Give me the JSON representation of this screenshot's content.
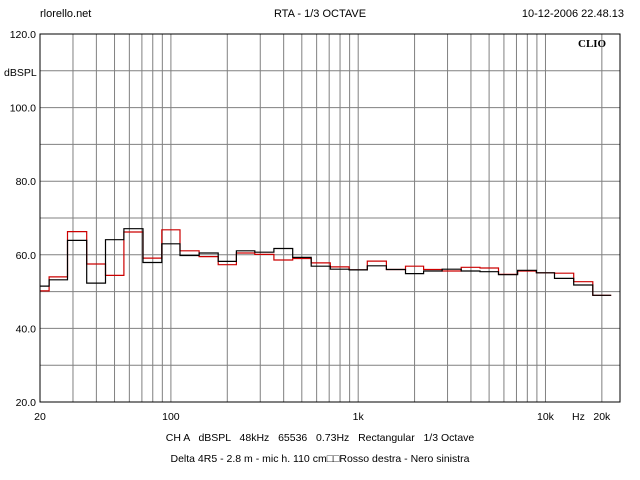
{
  "header": {
    "site": "rlorello.net",
    "title": "RTA - 1/3 OCTAVE",
    "datetime": "10-12-2006 22.48.13"
  },
  "footer": {
    "settings": [
      "CH A",
      "dBSPL",
      "48kHz",
      "65536",
      "0.73Hz",
      "Rectangular",
      "1/3 Octave"
    ],
    "note": "Delta 4R5 - 2.8 m - mic h. 110 cm□□Rosso destra - Nero sinistra"
  },
  "chart_data": {
    "type": "line",
    "brand": "CLIO",
    "ylabel": "dBSPL",
    "xlabel_unit": "Hz",
    "x_scale": "log",
    "xlim": [
      20,
      25000
    ],
    "ylim": [
      20,
      120
    ],
    "grid": true,
    "y_tick_labels": [
      "120.0",
      "100.0",
      "80.0",
      "60.0",
      "40.0",
      "20.0"
    ],
    "y_ticks": [
      120,
      100,
      80,
      60,
      40,
      20
    ],
    "x_tick_labels": [
      "20",
      "100",
      "1k",
      "10k",
      "20k"
    ],
    "x_ticks": [
      20,
      100,
      1000,
      10000,
      20000
    ],
    "colors": {
      "red": "#cc0000",
      "black": "#000000",
      "grid": "#808080"
    },
    "bands": [
      20,
      25,
      31.5,
      40,
      50,
      63,
      80,
      100,
      125,
      160,
      200,
      250,
      315,
      400,
      500,
      630,
      800,
      1000,
      1250,
      1600,
      2000,
      2500,
      3150,
      4000,
      5000,
      6300,
      8000,
      10000,
      12500,
      16000,
      20000
    ],
    "series": [
      {
        "color": "#cc0000",
        "values": [
          50.2,
          54.0,
          66.3,
          57.5,
          54.4,
          66.2,
          59.1,
          66.8,
          61.1,
          59.5,
          57.3,
          60.5,
          60.1,
          58.6,
          59.0,
          57.8,
          56.7,
          55.9,
          58.3,
          56.0,
          56.9,
          56.0,
          55.6,
          56.6,
          56.4,
          54.7,
          55.6,
          55.1,
          55.0,
          52.7,
          49.0
        ]
      },
      {
        "color": "#000000",
        "values": [
          51.5,
          53.2,
          63.9,
          52.3,
          64.1,
          67.1,
          57.9,
          63.0,
          59.8,
          60.5,
          58.2,
          61.1,
          60.7,
          61.7,
          59.3,
          56.9,
          56.1,
          55.9,
          57.0,
          56.0,
          54.9,
          55.6,
          56.1,
          55.6,
          55.4,
          54.6,
          55.8,
          55.1,
          53.6,
          51.8,
          49.0
        ]
      }
    ]
  }
}
